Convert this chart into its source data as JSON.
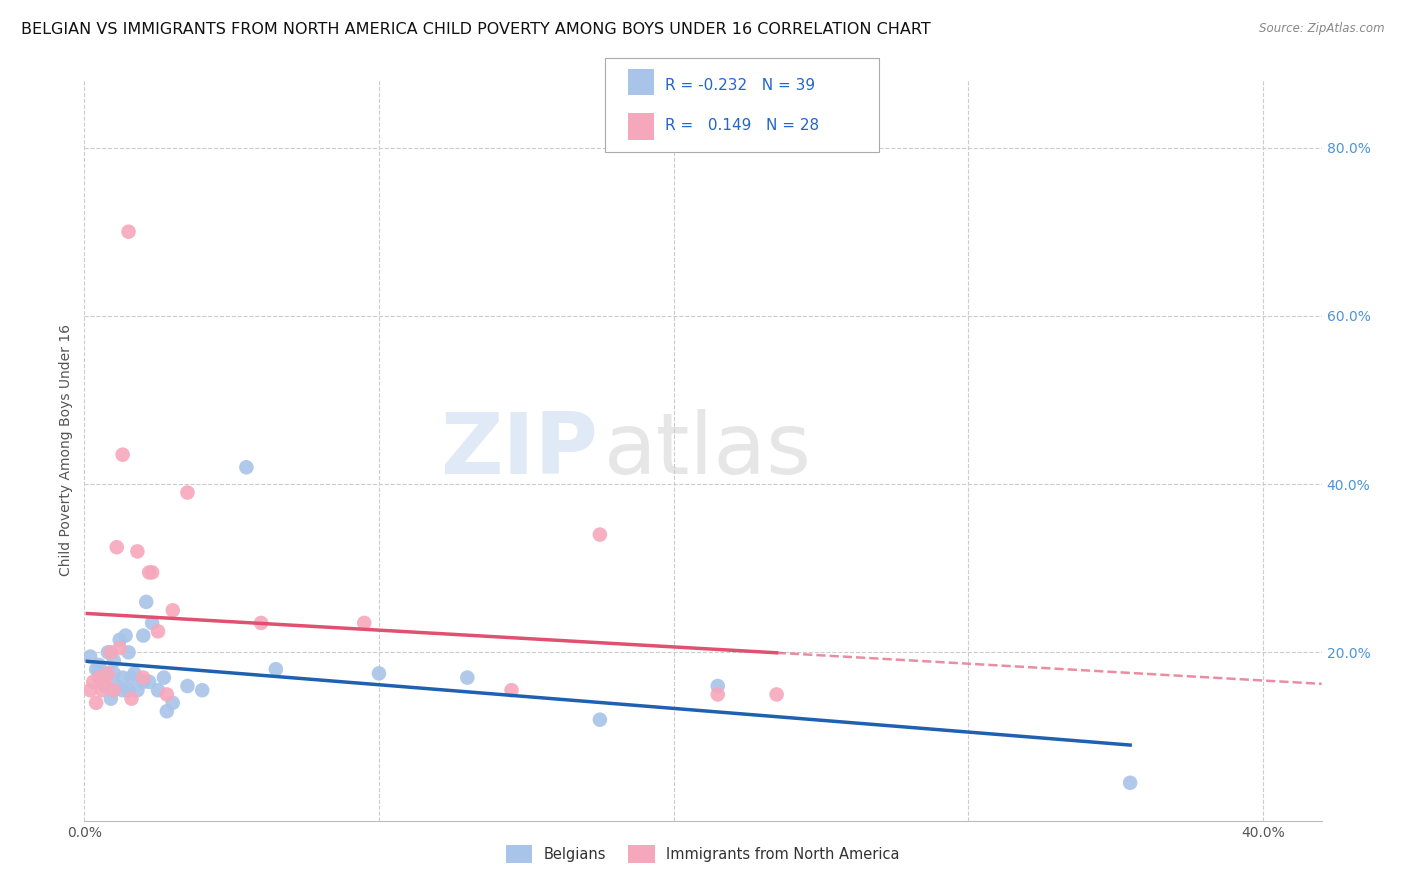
{
  "title": "BELGIAN VS IMMIGRANTS FROM NORTH AMERICA CHILD POVERTY AMONG BOYS UNDER 16 CORRELATION CHART",
  "source": "Source: ZipAtlas.com",
  "ylabel": "Child Poverty Among Boys Under 16",
  "xlim": [
    0.0,
    0.42
  ],
  "ylim": [
    0.0,
    0.88
  ],
  "yticks_right": [
    0.2,
    0.4,
    0.6,
    0.8
  ],
  "ytick_right_labels": [
    "20.0%",
    "40.0%",
    "60.0%",
    "80.0%"
  ],
  "legend_r_blue": "-0.232",
  "legend_n_blue": "39",
  "legend_r_pink": "0.149",
  "legend_n_pink": "28",
  "blue_color": "#a8c4e8",
  "pink_color": "#f5a8bc",
  "blue_line_color": "#2060b0",
  "pink_line_color": "#e05070",
  "watermark_zip": "ZIP",
  "watermark_atlas": "atlas",
  "belgians_x": [
    0.002,
    0.004,
    0.005,
    0.005,
    0.006,
    0.007,
    0.008,
    0.008,
    0.009,
    0.01,
    0.01,
    0.011,
    0.012,
    0.013,
    0.013,
    0.014,
    0.015,
    0.015,
    0.016,
    0.017,
    0.018,
    0.02,
    0.02,
    0.021,
    0.022,
    0.023,
    0.025,
    0.027,
    0.028,
    0.03,
    0.035,
    0.04,
    0.055,
    0.065,
    0.1,
    0.13,
    0.175,
    0.215,
    0.355
  ],
  "belgians_y": [
    0.195,
    0.18,
    0.175,
    0.185,
    0.165,
    0.16,
    0.175,
    0.2,
    0.145,
    0.175,
    0.19,
    0.16,
    0.215,
    0.155,
    0.17,
    0.22,
    0.155,
    0.2,
    0.17,
    0.175,
    0.155,
    0.165,
    0.22,
    0.26,
    0.165,
    0.235,
    0.155,
    0.17,
    0.13,
    0.14,
    0.16,
    0.155,
    0.42,
    0.18,
    0.175,
    0.17,
    0.12,
    0.16,
    0.045
  ],
  "immigrants_x": [
    0.002,
    0.003,
    0.004,
    0.005,
    0.006,
    0.007,
    0.008,
    0.009,
    0.01,
    0.011,
    0.012,
    0.013,
    0.015,
    0.016,
    0.018,
    0.02,
    0.022,
    0.023,
    0.025,
    0.028,
    0.03,
    0.035,
    0.06,
    0.095,
    0.145,
    0.175,
    0.215,
    0.235
  ],
  "immigrants_y": [
    0.155,
    0.165,
    0.14,
    0.17,
    0.155,
    0.165,
    0.175,
    0.2,
    0.155,
    0.325,
    0.205,
    0.435,
    0.7,
    0.145,
    0.32,
    0.17,
    0.295,
    0.295,
    0.225,
    0.15,
    0.25,
    0.39,
    0.235,
    0.235,
    0.155,
    0.34,
    0.15,
    0.15
  ],
  "grid_color": "#cccccc",
  "background_color": "#ffffff",
  "title_fontsize": 11.5,
  "axis_label_fontsize": 10,
  "tick_fontsize": 10,
  "legend_fontsize": 11
}
